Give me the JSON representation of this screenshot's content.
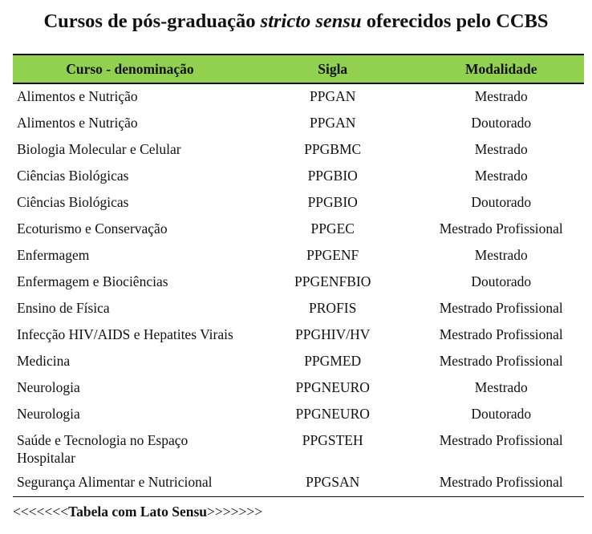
{
  "title": {
    "pre": "Cursos de pós-graduação ",
    "italic": "stricto sensu",
    "post": " oferecidos pelo CCBS"
  },
  "table": {
    "headers": [
      "Curso - denominação",
      "Sigla",
      "Modalidade"
    ],
    "rows": [
      [
        "Alimentos e Nutrição",
        "PPGAN",
        "Mestrado"
      ],
      [
        "Alimentos e Nutrição",
        "PPGAN",
        "Doutorado"
      ],
      [
        "Biologia Molecular e Celular",
        "PPGBMC",
        "Mestrado"
      ],
      [
        "Ciências Biológicas",
        "PPGBIO",
        "Mestrado"
      ],
      [
        "Ciências Biológicas",
        "PPGBIO",
        "Doutorado"
      ],
      [
        "Ecoturismo e Conservação",
        "PPGEC",
        "Mestrado Profissional"
      ],
      [
        "Enfermagem",
        "PPGENF",
        "Mestrado"
      ],
      [
        "Enfermagem e Biociências",
        "PPGENFBIO",
        "Doutorado"
      ],
      [
        "Ensino de Física",
        "PROFIS",
        "Mestrado Profissional"
      ],
      [
        "Infecção HIV/AIDS e Hepatites Virais",
        "PPGHIV/HV",
        "Mestrado Profissional"
      ],
      [
        "Medicina",
        "PPGMED",
        "Mestrado Profissional"
      ],
      [
        "Neurologia",
        "PPGNEURO",
        "Mestrado"
      ],
      [
        "Neurologia",
        "PPGNEURO",
        "Doutorado"
      ],
      [
        "Saúde e Tecnologia no Espaço Hospitalar",
        "PPGSTEH",
        "Mestrado Profissional"
      ],
      [
        "Segurança Alimentar e Nutricional",
        "PPGSAN",
        "Mestrado Profissional"
      ]
    ]
  },
  "link": {
    "left": "<<<<<<<",
    "label": "Tabela com Lato Sensu",
    "right": ">>>>>>>"
  },
  "colors": {
    "header_bg": "#92d050"
  }
}
